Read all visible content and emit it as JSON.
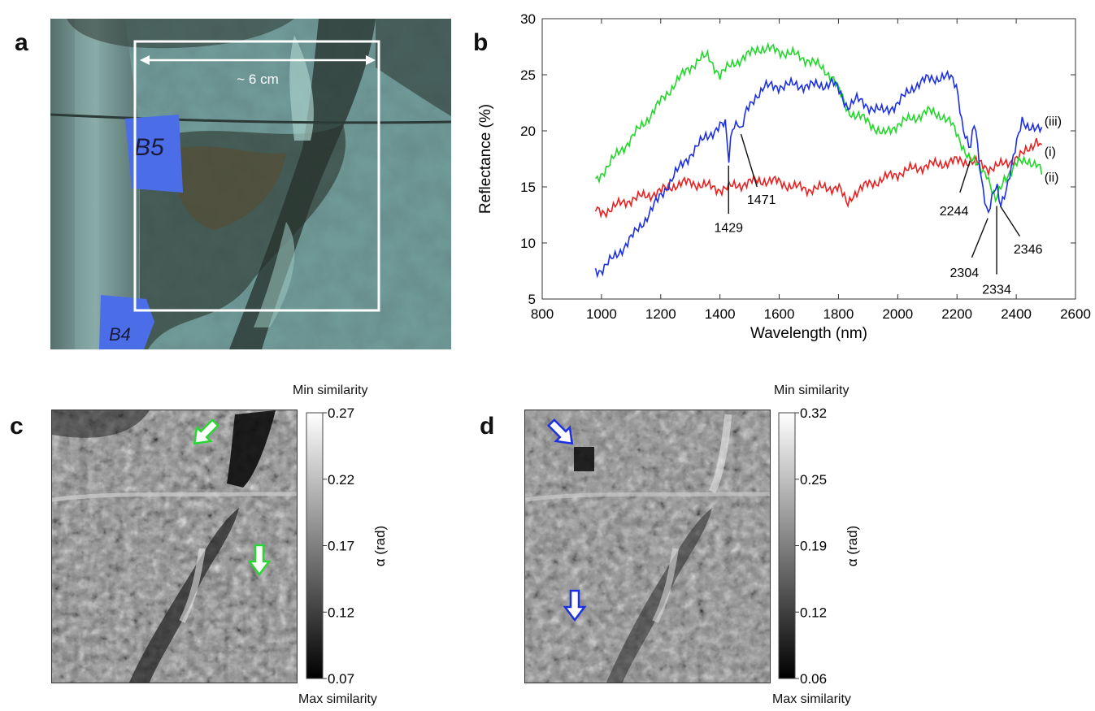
{
  "figure": {
    "panel_labels": {
      "a": "a",
      "b": "b",
      "c": "c",
      "d": "d"
    }
  },
  "panel_a": {
    "scale_label": "~ 6 cm",
    "tape_labels": [
      "B5",
      "B4"
    ]
  },
  "chart_data": {
    "type": "line",
    "title": "",
    "xlabel": "Wavelength (nm)",
    "ylabel": "Reflectance (%)",
    "xlim": [
      800,
      2600
    ],
    "ylim": [
      5,
      30
    ],
    "x_ticks": [
      800,
      1000,
      1200,
      1400,
      1600,
      1800,
      2000,
      2200,
      2400,
      2600
    ],
    "y_ticks": [
      5,
      10,
      15,
      20,
      25,
      30
    ],
    "grid": false,
    "series": [
      {
        "name": "(i)",
        "color": "#e8201f",
        "x": [
          980,
          1000,
          1050,
          1100,
          1150,
          1200,
          1250,
          1300,
          1350,
          1400,
          1429,
          1450,
          1500,
          1550,
          1600,
          1650,
          1700,
          1750,
          1800,
          1830,
          1850,
          1900,
          1950,
          2000,
          2050,
          2100,
          2150,
          2200,
          2244,
          2280,
          2304,
          2334,
          2346,
          2380,
          2400,
          2420,
          2450,
          2470,
          2490
        ],
        "y": [
          12.9,
          12.7,
          13.3,
          13.9,
          14.2,
          14.6,
          15.2,
          15.4,
          15.1,
          14.8,
          14.9,
          15.1,
          15.4,
          15.6,
          15.4,
          15.0,
          14.8,
          14.9,
          15.0,
          13.4,
          14.4,
          15.2,
          15.7,
          16.2,
          16.6,
          16.9,
          17.1,
          17.3,
          17.3,
          17.0,
          16.7,
          16.8,
          16.9,
          17.3,
          17.6,
          17.8,
          18.6,
          19.3,
          18.2
        ]
      },
      {
        "name": "(ii)",
        "color": "#22d62a",
        "x": [
          980,
          1000,
          1050,
          1100,
          1150,
          1200,
          1250,
          1300,
          1330,
          1360,
          1380,
          1400,
          1450,
          1500,
          1530,
          1560,
          1600,
          1650,
          1700,
          1750,
          1780,
          1800,
          1830,
          1860,
          1900,
          1950,
          2000,
          2050,
          2100,
          2150,
          2180,
          2200,
          2244,
          2270,
          2300,
          2330,
          2360,
          2400,
          2440,
          2470,
          2490
        ],
        "y": [
          15.5,
          16.2,
          17.8,
          19.3,
          20.9,
          22.6,
          24.3,
          25.7,
          26.4,
          26.6,
          25.8,
          25.0,
          26.1,
          26.8,
          27.4,
          27.3,
          27.1,
          26.8,
          26.3,
          25.5,
          24.8,
          23.6,
          21.9,
          21.3,
          20.9,
          19.6,
          20.6,
          21.1,
          21.7,
          21.4,
          20.6,
          19.7,
          17.4,
          16.9,
          16.3,
          13.6,
          15.8,
          17.0,
          17.4,
          17.0,
          16.0
        ]
      },
      {
        "name": "(iii)",
        "color": "#1c2fe3",
        "x": [
          980,
          1000,
          1050,
          1100,
          1150,
          1200,
          1250,
          1300,
          1350,
          1400,
          1420,
          1429,
          1440,
          1460,
          1471,
          1490,
          1520,
          1550,
          1600,
          1650,
          1700,
          1750,
          1780,
          1800,
          1830,
          1860,
          1900,
          1950,
          2000,
          2050,
          2100,
          2150,
          2180,
          2200,
          2220,
          2244,
          2260,
          2280,
          2304,
          2320,
          2334,
          2346,
          2370,
          2400,
          2420,
          2440,
          2470,
          2490
        ],
        "y": [
          7.6,
          7.6,
          8.9,
          10.4,
          12.2,
          14.2,
          16.2,
          17.9,
          19.4,
          20.4,
          20.5,
          17.1,
          20.4,
          20.9,
          19.9,
          21.7,
          23.1,
          23.9,
          24.0,
          24.1,
          24.0,
          24.1,
          24.3,
          23.6,
          22.2,
          22.8,
          22.2,
          21.7,
          22.4,
          23.9,
          24.6,
          24.8,
          24.7,
          24.0,
          20.3,
          18.1,
          20.9,
          16.3,
          12.4,
          14.0,
          15.1,
          13.4,
          15.2,
          18.6,
          21.0,
          20.5,
          20.0,
          20.1
        ]
      }
    ],
    "series_labels": [
      "(iii)",
      "(i)",
      "(ii)"
    ],
    "annotations": [
      {
        "text": "1429",
        "x": 1429
      },
      {
        "text": "1471",
        "x": 1471
      },
      {
        "text": "2244",
        "x": 2244
      },
      {
        "text": "2304",
        "x": 2304
      },
      {
        "text": "2334",
        "x": 2334
      },
      {
        "text": "2346",
        "x": 2346
      }
    ]
  },
  "panel_c": {
    "colorbar": {
      "top_label": "Min similarity",
      "bottom_label": "Max similarity",
      "axis_label": "α (rad)",
      "ticks": [
        "0.27",
        "0.22",
        "0.17",
        "0.12",
        "0.07"
      ]
    },
    "arrow_color": "#2ad633"
  },
  "panel_d": {
    "colorbar": {
      "top_label": "Min similarity",
      "bottom_label": "Max similarity",
      "axis_label": "α (rad)",
      "ticks": [
        "0.32",
        "0.25",
        "0.19",
        "0.12",
        "0.06"
      ]
    },
    "arrow_color": "#1c2fe3"
  }
}
